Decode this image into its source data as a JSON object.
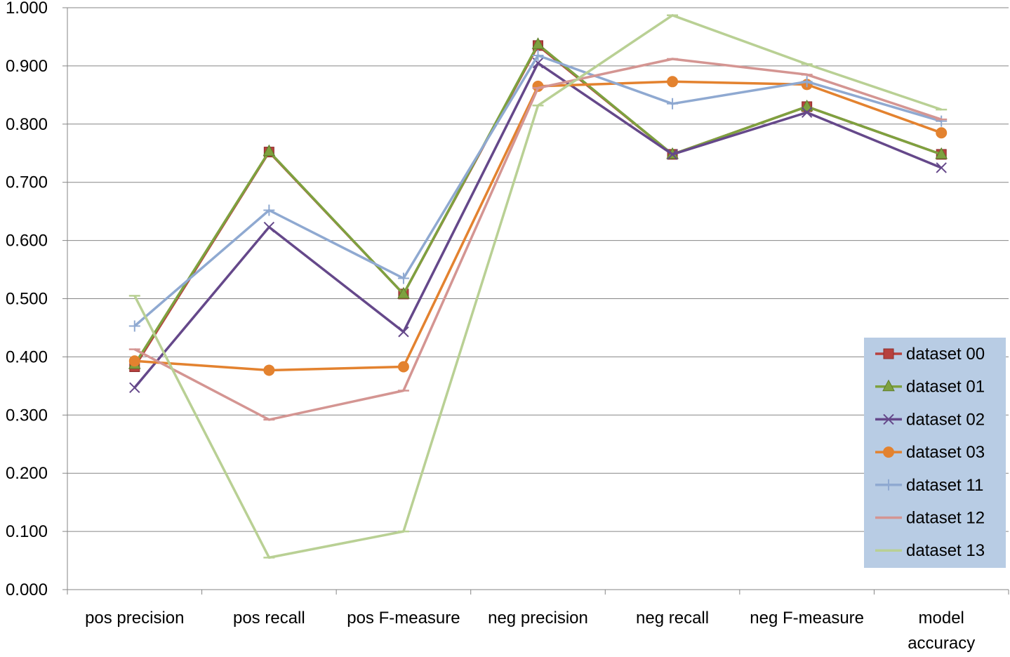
{
  "chart_data": {
    "type": "line",
    "title": "",
    "xlabel": "",
    "ylabel": "",
    "ylim": [
      0,
      1
    ],
    "y_ticks": [
      "0.000",
      "0.100",
      "0.200",
      "0.300",
      "0.400",
      "0.500",
      "0.600",
      "0.700",
      "0.800",
      "0.900",
      "1.000"
    ],
    "categories": [
      [
        "pos precision"
      ],
      [
        "pos recall"
      ],
      [
        "pos F-measure"
      ],
      [
        "neg precision"
      ],
      [
        "neg recall"
      ],
      [
        "neg F-measure"
      ],
      [
        "model",
        "accuracy"
      ]
    ],
    "grid": "horizontal",
    "legend_position": "right",
    "series": [
      {
        "name": "dataset 00",
        "color": "#B7413E",
        "marker": "square",
        "values": [
          0.383,
          0.752,
          0.508,
          0.935,
          0.748,
          0.83,
          0.748
        ]
      },
      {
        "name": "dataset 01",
        "color": "#7EA13F",
        "marker": "triangle",
        "values": [
          0.387,
          0.753,
          0.508,
          0.937,
          0.748,
          0.83,
          0.748
        ]
      },
      {
        "name": "dataset 02",
        "color": "#65488A",
        "marker": "x",
        "values": [
          0.347,
          0.623,
          0.443,
          0.905,
          0.748,
          0.82,
          0.725
        ]
      },
      {
        "name": "dataset 03",
        "color": "#E3822F",
        "marker": "circle",
        "values": [
          0.393,
          0.377,
          0.383,
          0.865,
          0.873,
          0.868,
          0.785
        ]
      },
      {
        "name": "dataset 11",
        "color": "#8FA9D1",
        "marker": "plus",
        "values": [
          0.453,
          0.652,
          0.535,
          0.918,
          0.835,
          0.873,
          0.805
        ]
      },
      {
        "name": "dataset 12",
        "color": "#D49592",
        "marker": "dash",
        "values": [
          0.413,
          0.292,
          0.342,
          0.862,
          0.912,
          0.885,
          0.808
        ]
      },
      {
        "name": "dataset 13",
        "color": "#B9D094",
        "marker": "dash",
        "values": [
          0.505,
          0.055,
          0.1,
          0.832,
          0.987,
          0.903,
          0.825
        ]
      }
    ],
    "legend_background": "#B8CCE4"
  }
}
